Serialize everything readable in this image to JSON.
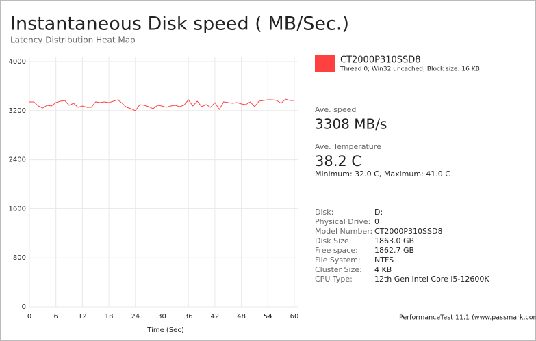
{
  "chart_data": {
    "type": "line",
    "title": "Instantaneous Disk speed ( MB/Sec.)",
    "subtitle": "Latency Distribution Heat Map",
    "xlabel": "Time (Sec)",
    "x": [
      0,
      1,
      2,
      3,
      4,
      5,
      6,
      7,
      8,
      9,
      10,
      11,
      12,
      13,
      14,
      15,
      16,
      17,
      18,
      19,
      20,
      21,
      22,
      23,
      24,
      25,
      26,
      27,
      28,
      29,
      30,
      31,
      32,
      33,
      34,
      35,
      36,
      37,
      38,
      39,
      40,
      41,
      42,
      43,
      44,
      45,
      46,
      47,
      48,
      49,
      50,
      51,
      52,
      53,
      54,
      55,
      56,
      57,
      58,
      59,
      60
    ],
    "series": [
      {
        "name": "CT2000P310SSD8",
        "color": "#ff4040",
        "values": [
          3343,
          3343,
          3276,
          3242,
          3287,
          3276,
          3331,
          3354,
          3365,
          3287,
          3320,
          3254,
          3276,
          3254,
          3254,
          3343,
          3331,
          3343,
          3331,
          3354,
          3376,
          3320,
          3254,
          3231,
          3198,
          3298,
          3287,
          3265,
          3231,
          3287,
          3276,
          3254,
          3276,
          3287,
          3265,
          3287,
          3376,
          3276,
          3354,
          3265,
          3298,
          3254,
          3331,
          3220,
          3343,
          3331,
          3320,
          3331,
          3309,
          3298,
          3343,
          3265,
          3354,
          3365,
          3376,
          3376,
          3365,
          3320,
          3387,
          3365,
          3365
        ]
      }
    ],
    "legend_note": "Thread 0; Win32 uncached; Block size: 16 KB",
    "xlim": [
      0,
      60
    ],
    "xticks": [
      0,
      6,
      12,
      18,
      24,
      30,
      36,
      42,
      48,
      54,
      60
    ],
    "ylim": [
      0,
      4000
    ],
    "yticks": [
      0,
      800,
      1600,
      2400,
      3200,
      4000
    ],
    "grid": true
  },
  "stats": [
    {
      "label": "Ave. speed",
      "value": "3308 MB/s"
    },
    {
      "label": "Ave. Temperature",
      "value": "38.2 C",
      "detail": "Minimum: 32.0 C, Maximum: 41.0 C"
    }
  ],
  "info": [
    [
      "Disk:",
      "D:"
    ],
    [
      "Physical Drive:",
      "0"
    ],
    [
      "Model Number:",
      "CT2000P310SSD8"
    ],
    [
      "Disk Size:",
      "1863.0 GB"
    ],
    [
      "Free space:",
      "1862.7 GB"
    ],
    [
      "File System:",
      "NTFS"
    ],
    [
      "Cluster Size:",
      "4 KB"
    ],
    [
      "CPU Type:",
      "12th Gen Intel Core i5-12600K"
    ]
  ],
  "footer": "PerformanceTest 11.1 (www.passmark.com)"
}
